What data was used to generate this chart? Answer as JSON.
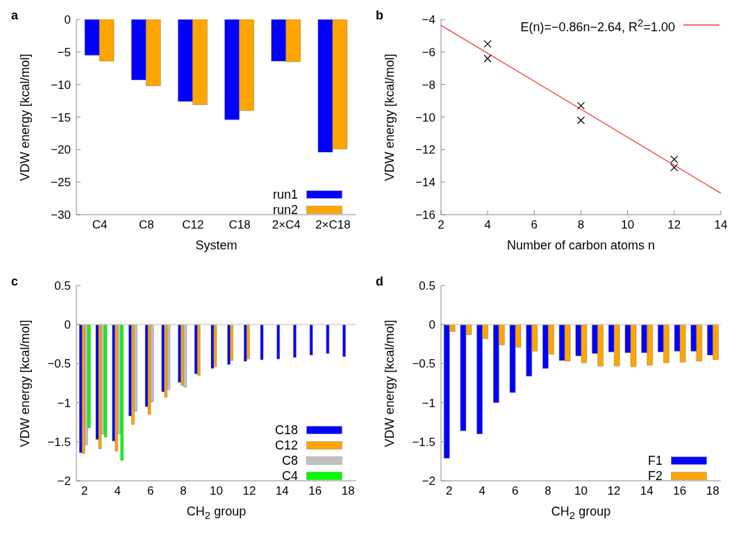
{
  "chart_data": [
    {
      "type": "bar",
      "title": "a",
      "xlabel": "System",
      "ylabel": "VDW energy [kcal/mol]",
      "categories": [
        "C4",
        "C8",
        "C12",
        "C18",
        "2×C4",
        "2×C18"
      ],
      "series": [
        {
          "name": "run1",
          "color": "#0000ff",
          "values": [
            -5.5,
            -9.3,
            -12.6,
            -15.4,
            -6.4,
            -20.4
          ]
        },
        {
          "name": "run2",
          "color": "#ffa500",
          "values": [
            -6.4,
            -10.2,
            -13.1,
            -14.0,
            -6.5,
            -19.9
          ]
        }
      ],
      "ylim": [
        -30,
        0
      ],
      "yticks": [
        -30,
        -25,
        -20,
        -15,
        -10,
        -5,
        0
      ],
      "legend": "bottom right"
    },
    {
      "type": "scatter",
      "title": "b",
      "xlabel": "Number of carbon atoms n",
      "ylabel": "VDW energy [kcal/mol]",
      "series": [
        {
          "type": "scatter",
          "color": "#000000",
          "marker": "cross",
          "x": [
            4,
            4,
            8,
            8,
            12,
            12
          ],
          "values": [
            -5.5,
            -6.4,
            -9.3,
            -10.2,
            -12.6,
            -13.1
          ]
        },
        {
          "type": "line",
          "name": "E(n)=−0.86n−2.64, R$^{2}$=1.00",
          "color": "#f03c3c",
          "marker": "none",
          "x": [
            2,
            14
          ],
          "values": [
            -4.36,
            -14.68
          ]
        }
      ],
      "xlim": [
        2,
        14
      ],
      "xticks": [
        2,
        4,
        6,
        8,
        10,
        12,
        14
      ],
      "ylim": [
        -16,
        -4
      ],
      "yticks": [
        -16,
        -14,
        -12,
        -10,
        -8,
        -6,
        -4
      ],
      "line_style": "solid",
      "legend": "top right"
    },
    {
      "type": "bar",
      "title": "c",
      "xlabel": "CH$_{2}$ group",
      "ylabel": "VDW energy [kcal/mol]",
      "categories": [
        "2",
        null,
        "4",
        null,
        "6",
        null,
        "8",
        null,
        "10",
        null,
        "12",
        null,
        "14",
        null,
        "16",
        null,
        "18"
      ],
      "series": [
        {
          "name": "C18",
          "color": "#0000ff",
          "values": [
            -1.64,
            -1.47,
            -1.49,
            -1.17,
            -1.05,
            -0.86,
            -0.74,
            -0.63,
            -0.56,
            -0.51,
            -0.47,
            -0.45,
            -0.44,
            -0.42,
            -0.39,
            -0.37,
            -0.41
          ]
        },
        {
          "name": "C12",
          "color": "#ffa500",
          "values": [
            -1.65,
            -1.59,
            -1.62,
            -1.28,
            -1.15,
            -0.93,
            -0.78,
            -0.65,
            -0.54,
            -0.46,
            -0.44,
            null,
            null,
            null,
            null,
            null,
            null
          ]
        },
        {
          "name": "C8",
          "color": "#c0c0c0",
          "values": [
            -1.54,
            -1.4,
            -1.4,
            -1.11,
            -0.99,
            -0.83,
            -0.8,
            null,
            null,
            null,
            null,
            null,
            null,
            null,
            null,
            null,
            null
          ]
        },
        {
          "name": "C4",
          "color": "#00ff00",
          "values": [
            -1.32,
            -1.44,
            -1.74,
            null,
            null,
            null,
            null,
            null,
            null,
            null,
            null,
            null,
            null,
            null,
            null,
            null,
            null
          ]
        }
      ],
      "ylim": [
        -2,
        0.5
      ],
      "yticks": [
        -2,
        -1.5,
        -1,
        -0.5,
        0,
        0.5
      ],
      "ref_lines": [
        {
          "axis": "y",
          "value": 0,
          "color": "#c8c8c8"
        }
      ],
      "legend": "bottom right"
    },
    {
      "type": "bar",
      "title": "d",
      "xlabel": "CH$_{2}$ group",
      "ylabel": "VDW energy [kcal/mol]",
      "categories": [
        "2",
        null,
        "4",
        null,
        "6",
        null,
        "8",
        null,
        "10",
        null,
        "12",
        null,
        "14",
        null,
        "16",
        null,
        "18"
      ],
      "series": [
        {
          "name": "F1",
          "color": "#0000ff",
          "values": [
            -1.71,
            -1.36,
            -1.4,
            -1.0,
            -0.87,
            -0.66,
            -0.56,
            -0.46,
            -0.4,
            -0.37,
            -0.35,
            -0.36,
            -0.36,
            -0.35,
            -0.34,
            -0.34,
            -0.39
          ]
        },
        {
          "name": "F2",
          "color": "#ffa500",
          "values": [
            -0.09,
            -0.13,
            -0.18,
            -0.26,
            -0.29,
            -0.34,
            -0.38,
            -0.47,
            -0.49,
            -0.53,
            -0.53,
            -0.54,
            -0.52,
            -0.49,
            -0.48,
            -0.47,
            -0.45
          ]
        }
      ],
      "ylim": [
        -2,
        0.5
      ],
      "yticks": [
        -2,
        -1.5,
        -1,
        -0.5,
        0,
        0.5
      ],
      "ref_lines": [
        {
          "axis": "y",
          "value": 0,
          "color": "#c8c8c8"
        }
      ],
      "legend": "bottom right"
    }
  ]
}
